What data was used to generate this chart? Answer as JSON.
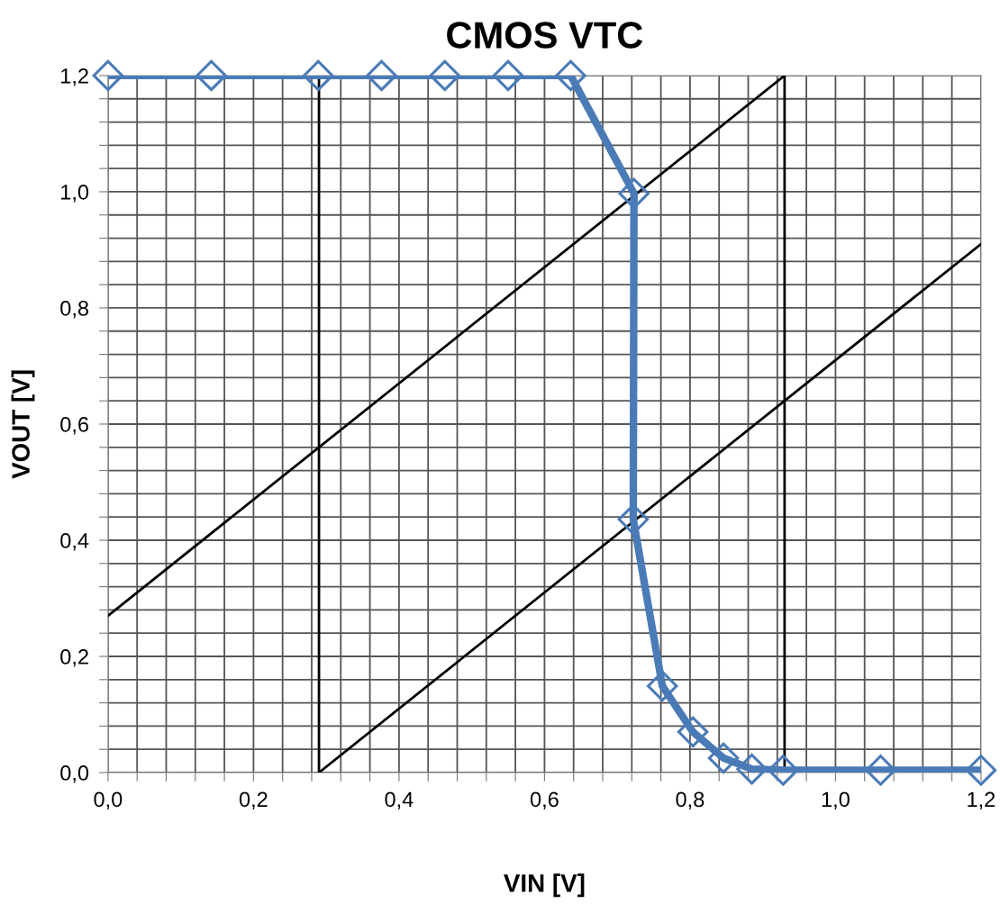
{
  "chart_data": {
    "type": "line",
    "title": "CMOS VTC",
    "xlabel": "VIN [V]",
    "ylabel": "VOUT [V]",
    "xlim": [
      0,
      1.2
    ],
    "ylim": [
      0,
      1.2
    ],
    "xticks": [
      {
        "value": 0,
        "label": "0,0"
      },
      {
        "value": 0.04,
        "label": null
      },
      {
        "value": 0.08,
        "label": null
      },
      {
        "value": 0.12,
        "label": null
      },
      {
        "value": 0.16,
        "label": null
      },
      {
        "value": 0.2,
        "label": "0,2"
      },
      {
        "value": 0.24,
        "label": null
      },
      {
        "value": 0.28,
        "label": null
      },
      {
        "value": 0.32,
        "label": null
      },
      {
        "value": 0.36,
        "label": null
      },
      {
        "value": 0.4,
        "label": "0,4"
      },
      {
        "value": 0.44,
        "label": null
      },
      {
        "value": 0.48,
        "label": null
      },
      {
        "value": 0.52,
        "label": null
      },
      {
        "value": 0.56,
        "label": null
      },
      {
        "value": 0.6,
        "label": "0,6"
      },
      {
        "value": 0.64,
        "label": null
      },
      {
        "value": 0.68,
        "label": null
      },
      {
        "value": 0.72,
        "label": null
      },
      {
        "value": 0.76,
        "label": null
      },
      {
        "value": 0.8,
        "label": "0,8"
      },
      {
        "value": 0.84,
        "label": null
      },
      {
        "value": 0.88,
        "label": null
      },
      {
        "value": 0.92,
        "label": null
      },
      {
        "value": 0.96,
        "label": null
      },
      {
        "value": 1.0,
        "label": "1,0"
      },
      {
        "value": 1.04,
        "label": null
      },
      {
        "value": 1.08,
        "label": null
      },
      {
        "value": 1.12,
        "label": null
      },
      {
        "value": 1.16,
        "label": null
      },
      {
        "value": 1.2,
        "label": "1,2"
      }
    ],
    "yticks": [
      {
        "value": 0,
        "label": "0,0"
      },
      {
        "value": 0.04,
        "label": null
      },
      {
        "value": 0.08,
        "label": null
      },
      {
        "value": 0.12,
        "label": null
      },
      {
        "value": 0.16,
        "label": null
      },
      {
        "value": 0.2,
        "label": "0,2"
      },
      {
        "value": 0.24,
        "label": null
      },
      {
        "value": 0.28,
        "label": null
      },
      {
        "value": 0.32,
        "label": null
      },
      {
        "value": 0.36,
        "label": null
      },
      {
        "value": 0.4,
        "label": "0,4"
      },
      {
        "value": 0.44,
        "label": null
      },
      {
        "value": 0.48,
        "label": null
      },
      {
        "value": 0.52,
        "label": null
      },
      {
        "value": 0.56,
        "label": null
      },
      {
        "value": 0.6,
        "label": "0,6"
      },
      {
        "value": 0.64,
        "label": null
      },
      {
        "value": 0.68,
        "label": null
      },
      {
        "value": 0.72,
        "label": null
      },
      {
        "value": 0.76,
        "label": null
      },
      {
        "value": 0.8,
        "label": "0,8"
      },
      {
        "value": 0.84,
        "label": null
      },
      {
        "value": 0.88,
        "label": null
      },
      {
        "value": 0.92,
        "label": null
      },
      {
        "value": 0.96,
        "label": null
      },
      {
        "value": 1.0,
        "label": "1,0"
      },
      {
        "value": 1.04,
        "label": null
      },
      {
        "value": 1.08,
        "label": null
      },
      {
        "value": 1.12,
        "label": null
      },
      {
        "value": 1.16,
        "label": null
      },
      {
        "value": 1.2,
        "label": "1,2"
      }
    ],
    "grid": true,
    "legend": false,
    "line_style": "solid",
    "series": [
      {
        "color": "#000000",
        "marker": "none",
        "x": [
          0.29,
          0.29
        ],
        "values": [
          0,
          1.2
        ]
      },
      {
        "color": "#000000",
        "marker": "none",
        "x": [
          0.93,
          0.93
        ],
        "values": [
          0,
          1.2
        ]
      },
      {
        "color": "#000000",
        "marker": "none",
        "x": [
          0,
          0.93
        ],
        "values": [
          0.27,
          1.2
        ]
      },
      {
        "color": "#000000",
        "marker": "none",
        "x": [
          0.29,
          1.2
        ],
        "values": [
          0,
          0.91
        ]
      },
      {
        "color": "#4a7bb7",
        "marker": "diamond",
        "x": [
          0,
          0.142,
          0.289,
          0.376,
          0.463,
          0.55,
          0.636,
          0.723,
          0.722,
          0.762,
          0.804,
          0.846,
          0.885,
          0.928,
          1.062,
          1.2
        ],
        "values": [
          1.2,
          1.2,
          1.2,
          1.2,
          1.2,
          1.2,
          1.2,
          0.997,
          0.436,
          0.149,
          0.07,
          0.025,
          0.006,
          0.004,
          0.004,
          0.004
        ]
      }
    ]
  }
}
